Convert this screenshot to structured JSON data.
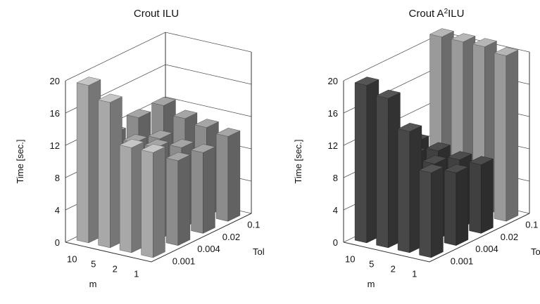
{
  "chart_data": [
    {
      "type": "bar3d",
      "title": "Crout ILU",
      "title_parts": [
        "Crout ILU"
      ],
      "ylabel": "Time [sec.]",
      "x_axis_label": "m",
      "z_axis_label": "Tol",
      "m_values": [
        "10",
        "5",
        "2",
        "1"
      ],
      "tol_values": [
        "0.001",
        "0.004",
        "0.02",
        "0.1"
      ],
      "yticks": [
        0,
        4,
        8,
        12,
        16,
        20
      ],
      "ylim": [
        0,
        20
      ],
      "series": [
        {
          "tol": "0.001",
          "values": [
            19.5,
            18.0,
            13.0,
            13.0
          ]
        },
        {
          "tol": "0.004",
          "values": [
            12.0,
            11.5,
            11.5,
            10.5
          ]
        },
        {
          "tol": "0.02",
          "values": [
            12.5,
            10.5,
            10.0,
            10.0
          ]
        },
        {
          "tol": "0.1",
          "values": [
            12.5,
            11.5,
            11.0,
            10.5
          ]
        }
      ]
    },
    {
      "type": "bar3d",
      "title": "Crout A2ILU",
      "title_parts": [
        "Crout A",
        "2",
        "ILU"
      ],
      "ylabel": "Time [sec.]",
      "x_axis_label": "m",
      "z_axis_label": "Tol",
      "m_values": [
        "10",
        "5",
        "2",
        "1"
      ],
      "tol_values": [
        "0.001",
        "0.004",
        "0.02",
        "0.1"
      ],
      "yticks": [
        0,
        4,
        8,
        12,
        16,
        20
      ],
      "ylim": [
        0,
        20
      ],
      "series": [
        {
          "tol": "0.001",
          "values": [
            19.5,
            18.5,
            15.0,
            10.5
          ]
        },
        {
          "tol": "0.004",
          "values": [
            10.5,
            10.0,
            9.5,
            9.0
          ]
        },
        {
          "tol": "0.02",
          "values": [
            9.5,
            9.0,
            8.5,
            8.5
          ]
        },
        {
          "tol": "0.1",
          "values": [
            21.0,
            21.0,
            21.0,
            20.5
          ]
        }
      ]
    }
  ]
}
